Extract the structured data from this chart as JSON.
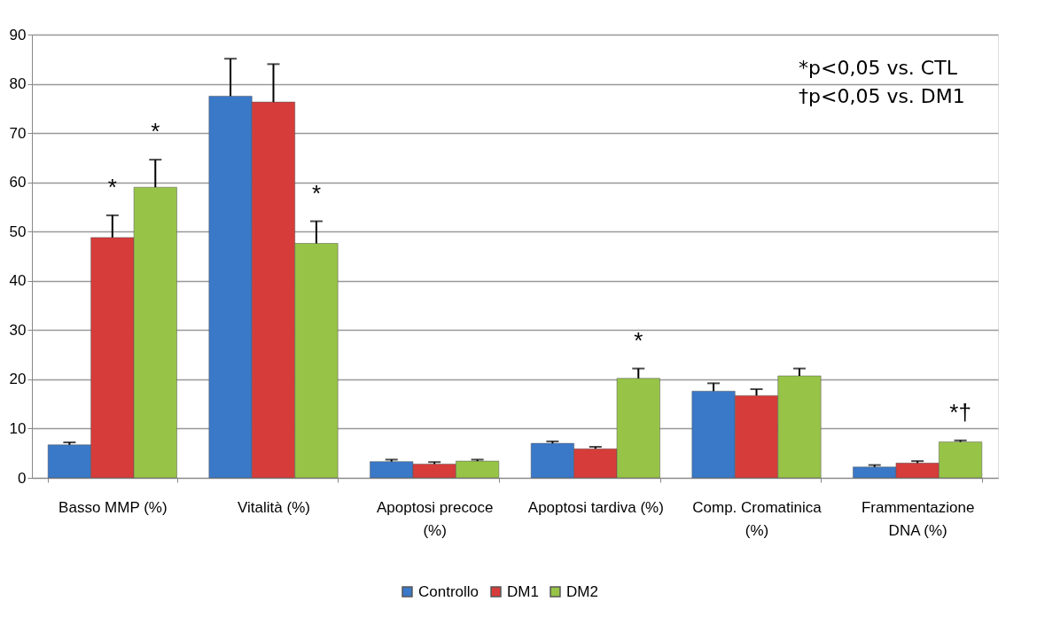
{
  "chart_data": {
    "type": "bar",
    "categories": [
      "Basso MMP (%)",
      "Vitalità (%)",
      "Apoptosi precoce\n(%)",
      "Apoptosi tardiva (%)",
      "Comp. Cromatinica\n(%)",
      "Frammentazione\nDNA (%)"
    ],
    "series": [
      {
        "name": "Controllo",
        "color": "#3a78c8",
        "values": [
          6.7,
          77.5,
          3.3,
          7.0,
          17.6,
          2.2
        ],
        "errors": [
          0.5,
          7.6,
          0.4,
          0.4,
          1.6,
          0.4
        ]
      },
      {
        "name": "DM1",
        "color": "#d63c3a",
        "values": [
          48.8,
          76.3,
          2.8,
          5.9,
          16.7,
          3.0
        ],
        "errors": [
          4.5,
          7.7,
          0.4,
          0.4,
          1.3,
          0.4
        ]
      },
      {
        "name": "DM2",
        "color": "#97c447",
        "values": [
          59.0,
          47.6,
          3.4,
          20.2,
          20.7,
          7.3
        ],
        "errors": [
          5.6,
          4.5,
          0.3,
          2.0,
          1.5,
          0.3
        ]
      }
    ],
    "ylim": [
      0,
      90
    ],
    "yticks": [
      0,
      10,
      20,
      30,
      40,
      50,
      60,
      70,
      80,
      90
    ],
    "grid": "y",
    "legend": "bottom",
    "annotations": [
      "*",
      "*",
      "*",
      "*",
      "*†",
      "*p<0,05 vs. CTL",
      "†p<0,05 vs. DM1"
    ]
  }
}
